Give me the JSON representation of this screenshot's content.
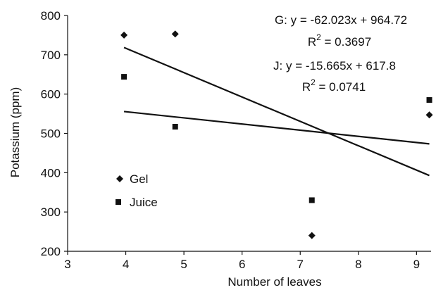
{
  "chart_data": {
    "type": "scatter",
    "xlabel": "Number of leaves",
    "ylabel": "Potassium (ppm)",
    "xlim": [
      3,
      9.25
    ],
    "ylim": [
      200,
      800
    ],
    "xticks": [
      "3",
      "4",
      "5",
      "6",
      "7",
      "8",
      "9"
    ],
    "yticks": [
      "200",
      "300",
      "400",
      "500",
      "600",
      "700",
      "800"
    ],
    "legend_position": "bottom-left",
    "series": [
      {
        "name": "Gel",
        "marker": "diamond",
        "color": "#111111",
        "x": [
          3.97,
          4.85,
          7.2,
          9.22
        ],
        "y": [
          750,
          753,
          240,
          547
        ],
        "trendline": {
          "slope": -62.023,
          "intercept": 964.72,
          "x_range": [
            3.97,
            9.22
          ]
        }
      },
      {
        "name": "Juice",
        "marker": "square",
        "color": "#111111",
        "x": [
          3.97,
          4.85,
          7.2,
          9.22
        ],
        "y": [
          644,
          517,
          330,
          585
        ],
        "trendline": {
          "slope": -15.665,
          "intercept": 617.8,
          "x_range": [
            3.97,
            9.22
          ]
        }
      }
    ],
    "annotations": {
      "gel_equation": "G: y = -62.023x + 964.72",
      "gel_r2_prefix": "R",
      "gel_r2_sup": "2",
      "gel_r2_value": " = 0.3697",
      "juice_equation": "J: y = -15.665x + 617.8",
      "juice_r2_prefix": "R",
      "juice_r2_sup": "2",
      "juice_r2_value": " = 0.0741"
    }
  }
}
